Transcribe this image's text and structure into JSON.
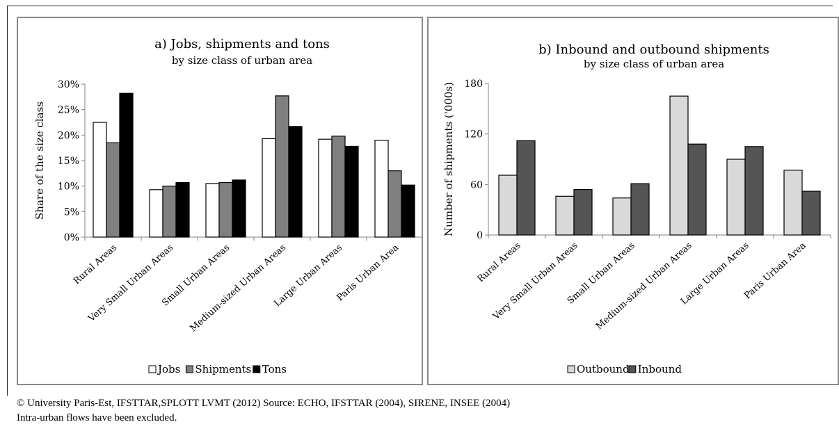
{
  "footer": {
    "line1": "© University Paris-Est, IFSTTAR,SPLOTT LVMT (2012) Source: ECHO, IFSTTAR (2004), SIRENE, INSEE (2004)",
    "line2": "Intra-urban flows have been excluded."
  },
  "chart_data": [
    {
      "type": "bar",
      "title": "a) Jobs, shipments and tons",
      "subtitle": "by size class of urban area",
      "xlabel": "",
      "ylabel": "Share of the size class",
      "ylim": [
        0,
        30
      ],
      "yticks": [
        "0%",
        "5%",
        "10%",
        "15%",
        "20%",
        "25%",
        "30%"
      ],
      "grid": false,
      "legend": "bottom",
      "categories": [
        "Rural Areas",
        "Very Small Urban Areas",
        "Small Urban Areas",
        "Medium-sized Urban Areas",
        "Large Urban Areas",
        "Paris Urban Area"
      ],
      "series": [
        {
          "name": "Jobs",
          "color": "#ffffff",
          "values": [
            22.5,
            9.3,
            10.5,
            19.3,
            19.2,
            19.0
          ]
        },
        {
          "name": "Shipments",
          "color": "#808080",
          "values": [
            18.5,
            10.0,
            10.7,
            27.7,
            19.8,
            13.0
          ]
        },
        {
          "name": "Tons",
          "color": "#000000",
          "values": [
            28.2,
            10.7,
            11.2,
            21.7,
            17.8,
            10.2
          ]
        }
      ]
    },
    {
      "type": "bar",
      "title": "b) Inbound and outbound shipments",
      "subtitle": "by size class of urban area",
      "xlabel": "",
      "ylabel": "Number of shipments ('000s)",
      "ylim": [
        0,
        180
      ],
      "yticks": [
        "0",
        "60",
        "120",
        "180"
      ],
      "grid": false,
      "legend": "bottom",
      "categories": [
        "Rural Areas",
        "Very Small Urban Areas",
        "Small Urban Areas",
        "Medium-sized Urban Areas",
        "Large Urban Areas",
        "Paris Urban Area"
      ],
      "series": [
        {
          "name": "Outbound",
          "color": "#d9d9d9",
          "values": [
            71,
            46,
            44,
            165,
            90,
            77
          ]
        },
        {
          "name": "Inbound",
          "color": "#555555",
          "values": [
            112,
            54,
            61,
            108,
            105,
            52
          ]
        }
      ]
    }
  ]
}
